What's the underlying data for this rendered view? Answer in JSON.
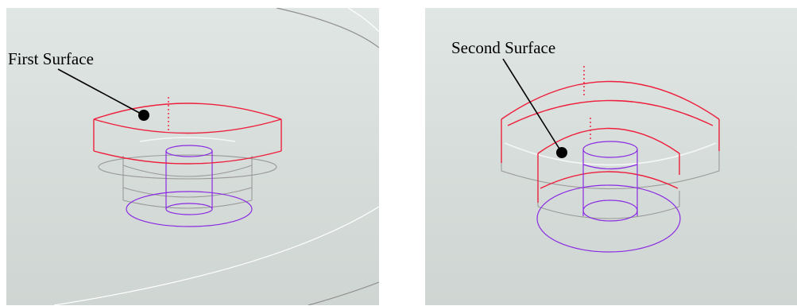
{
  "figure": {
    "panels": [
      {
        "id": "first",
        "label": "First Surface"
      },
      {
        "id": "second",
        "label": "Second Surface"
      }
    ],
    "colors": {
      "highlight_surface": "#ee1f3c",
      "hole_feature": "#8a2be2",
      "body_edges": "#9a9a98",
      "silhouette_edges": "#f5f7f6",
      "leader": "#000000"
    }
  }
}
